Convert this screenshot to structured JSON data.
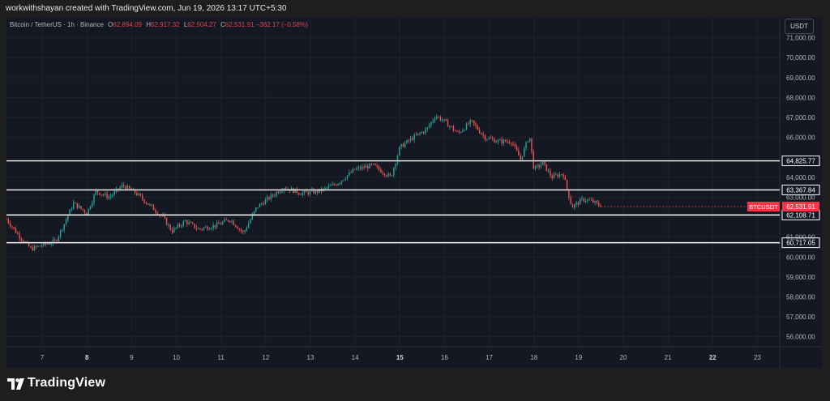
{
  "attribution": "workwithshayan created with TradingView.com, Jun 19, 2026 13:17 UTC+5:30",
  "header": {
    "symbol": "Bitcoin / TetherUS · 1h · Binance",
    "open_label": "O",
    "open": "62,894.09",
    "high_label": "H",
    "high": "62,917.32",
    "low_label": "L",
    "low": "62,504.27",
    "close_label": "C",
    "close": "62,531.91",
    "change": "−362.17 (−0.58%)"
  },
  "currency_button": "USDT",
  "brand": "TradingView",
  "colors": {
    "up": "#26a69a",
    "down": "#ef5350",
    "background": "#141823",
    "level_line": "#ffffff",
    "label_red": "#f23645"
  },
  "chart_data": {
    "type": "candlestick",
    "symbol": "BTCUSDT",
    "timeframe": "1h",
    "x_ticks": [
      "7",
      "8",
      "9",
      "10",
      "11",
      "12",
      "13",
      "14",
      "15",
      "16",
      "17",
      "18",
      "19",
      "20",
      "21",
      "22",
      "23"
    ],
    "y_ticks": [
      "71,000.00",
      "70,000.00",
      "69,000.00",
      "68,000.00",
      "67,000.00",
      "66,000.00",
      "64,000.00",
      "63,000.00",
      "61,000.00",
      "60,000.00",
      "59,000.00",
      "58,000.00",
      "57,000.00",
      "56,000.00"
    ],
    "ylim": [
      55500,
      72000
    ],
    "x_domain": [
      6.2,
      23.5
    ],
    "horizontal_levels": [
      {
        "label": "64,825.77",
        "value": 64825.77
      },
      {
        "label": "63,367.84",
        "value": 63367.84
      },
      {
        "label": "62,108.71",
        "value": 62108.71
      },
      {
        "label": "60,717.05",
        "value": 60717.05
      }
    ],
    "last_price": {
      "label": "BTCUSDT",
      "value_label": "62,531.91",
      "value": 62531.91
    },
    "price_path": [
      [
        6.2,
        61900
      ],
      [
        6.5,
        61000
      ],
      [
        6.75,
        60400
      ],
      [
        7.0,
        60600
      ],
      [
        7.3,
        60800
      ],
      [
        7.5,
        61700
      ],
      [
        7.7,
        62700
      ],
      [
        8.0,
        62200
      ],
      [
        8.2,
        63300
      ],
      [
        8.5,
        63000
      ],
      [
        8.8,
        63600
      ],
      [
        9.1,
        63200
      ],
      [
        9.4,
        62600
      ],
      [
        9.7,
        62000
      ],
      [
        9.9,
        61300
      ],
      [
        10.2,
        61800
      ],
      [
        10.5,
        61400
      ],
      [
        10.9,
        61600
      ],
      [
        11.2,
        61900
      ],
      [
        11.5,
        61200
      ],
      [
        11.8,
        62500
      ],
      [
        12.1,
        63000
      ],
      [
        12.4,
        63500
      ],
      [
        12.8,
        63200
      ],
      [
        13.2,
        63300
      ],
      [
        13.6,
        63700
      ],
      [
        14.0,
        64400
      ],
      [
        14.4,
        64600
      ],
      [
        14.8,
        64000
      ],
      [
        15.0,
        65500
      ],
      [
        15.3,
        66000
      ],
      [
        15.6,
        66400
      ],
      [
        15.8,
        67100
      ],
      [
        16.0,
        66800
      ],
      [
        16.3,
        66200
      ],
      [
        16.6,
        66800
      ],
      [
        16.9,
        66000
      ],
      [
        17.2,
        65800
      ],
      [
        17.5,
        65800
      ],
      [
        17.7,
        64900
      ],
      [
        17.9,
        66100
      ],
      [
        18.0,
        64400
      ],
      [
        18.2,
        64700
      ],
      [
        18.4,
        64000
      ],
      [
        18.65,
        64200
      ],
      [
        18.85,
        62500
      ],
      [
        19.1,
        62900
      ],
      [
        19.3,
        62800
      ],
      [
        19.5,
        62530
      ]
    ]
  }
}
